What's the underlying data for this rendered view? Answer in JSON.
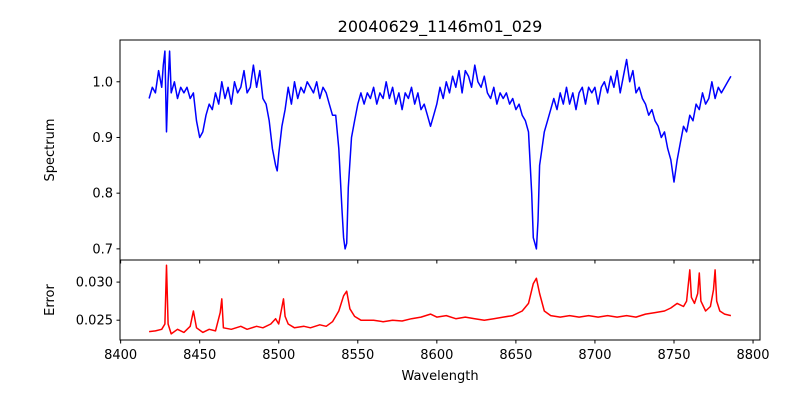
{
  "chart_data": [
    {
      "type": "line",
      "title": "20040629_1146m01_029",
      "xlabel": "",
      "ylabel": "Spectrum",
      "xlim": [
        8399.6,
        8804.4
      ],
      "ylim": [
        0.68,
        1.075
      ],
      "yticks": [
        "0.7",
        "0.8",
        "0.9",
        "1.0"
      ],
      "ytick_values": [
        0.7,
        0.8,
        0.9,
        1.0
      ],
      "color": "#0000ff",
      "x": [
        8418,
        8420,
        8422,
        8424,
        8426,
        8427,
        8428,
        8429,
        8430,
        8431,
        8432,
        8434,
        8436,
        8438,
        8440,
        8442,
        8444,
        8446,
        8448,
        8450,
        8452,
        8454,
        8456,
        8458,
        8460,
        8462,
        8464,
        8466,
        8468,
        8470,
        8472,
        8474,
        8476,
        8478,
        8480,
        8482,
        8484,
        8486,
        8488,
        8490,
        8492,
        8494,
        8496,
        8498,
        8499,
        8500,
        8502,
        8504,
        8506,
        8508,
        8510,
        8512,
        8514,
        8516,
        8518,
        8520,
        8522,
        8524,
        8526,
        8528,
        8530,
        8532,
        8534,
        8536,
        8538,
        8540,
        8541,
        8542,
        8543,
        8544,
        8546,
        8548,
        8550,
        8552,
        8554,
        8556,
        8558,
        8560,
        8562,
        8564,
        8566,
        8568,
        8570,
        8572,
        8574,
        8576,
        8578,
        8580,
        8582,
        8584,
        8586,
        8588,
        8590,
        8592,
        8594,
        8596,
        8598,
        8600,
        8602,
        8604,
        8606,
        8608,
        8610,
        8612,
        8614,
        8616,
        8618,
        8620,
        8622,
        8624,
        8626,
        8628,
        8630,
        8632,
        8634,
        8636,
        8638,
        8640,
        8642,
        8644,
        8646,
        8648,
        8650,
        8652,
        8654,
        8656,
        8658,
        8660,
        8661,
        8662,
        8663,
        8664,
        8665,
        8666,
        8668,
        8670,
        8672,
        8674,
        8676,
        8678,
        8680,
        8682,
        8684,
        8686,
        8688,
        8690,
        8692,
        8694,
        8696,
        8698,
        8700,
        8702,
        8704,
        8706,
        8708,
        8710,
        8712,
        8714,
        8716,
        8718,
        8720,
        8722,
        8724,
        8726,
        8728,
        8730,
        8732,
        8734,
        8736,
        8738,
        8740,
        8742,
        8744,
        8746,
        8748,
        8750,
        8752,
        8754,
        8756,
        8758,
        8760,
        8762,
        8764,
        8766,
        8768,
        8770,
        8772,
        8774,
        8776,
        8778,
        8780,
        8782,
        8784,
        8786
      ],
      "y": [
        0.97,
        0.99,
        0.98,
        1.02,
        0.99,
        1.03,
        1.055,
        0.91,
        1.0,
        1.055,
        0.98,
        1.0,
        0.97,
        0.99,
        0.98,
        0.99,
        0.97,
        0.98,
        0.93,
        0.9,
        0.91,
        0.94,
        0.96,
        0.95,
        0.98,
        0.96,
        1.0,
        0.97,
        0.99,
        0.96,
        1.0,
        0.98,
        0.99,
        1.02,
        0.98,
        0.99,
        1.03,
        0.99,
        1.02,
        0.97,
        0.96,
        0.93,
        0.88,
        0.85,
        0.84,
        0.87,
        0.92,
        0.95,
        0.99,
        0.96,
        1.0,
        0.97,
        0.99,
        0.98,
        1.0,
        0.99,
        0.98,
        1.0,
        0.97,
        0.99,
        0.98,
        0.96,
        0.94,
        0.94,
        0.88,
        0.77,
        0.72,
        0.7,
        0.71,
        0.81,
        0.9,
        0.93,
        0.96,
        0.98,
        0.96,
        0.98,
        0.97,
        0.99,
        0.96,
        0.98,
        0.97,
        1.0,
        0.97,
        0.99,
        0.96,
        0.98,
        0.95,
        0.98,
        0.97,
        0.99,
        0.96,
        0.98,
        0.95,
        0.96,
        0.94,
        0.92,
        0.94,
        0.96,
        0.99,
        0.97,
        1.0,
        0.98,
        1.01,
        0.99,
        1.02,
        0.98,
        1.02,
        1.01,
        0.99,
        1.03,
        1.0,
        0.99,
        1.01,
        0.98,
        0.97,
        0.99,
        0.96,
        0.98,
        0.97,
        0.98,
        0.96,
        0.97,
        0.95,
        0.96,
        0.94,
        0.93,
        0.91,
        0.8,
        0.72,
        0.71,
        0.7,
        0.75,
        0.85,
        0.87,
        0.91,
        0.93,
        0.95,
        0.97,
        0.95,
        0.98,
        0.96,
        0.99,
        0.96,
        0.98,
        0.95,
        0.98,
        0.99,
        0.96,
        0.99,
        0.98,
        0.99,
        0.96,
        0.99,
        1.0,
        0.98,
        1.01,
        0.99,
        1.02,
        0.98,
        1.01,
        1.04,
        1.0,
        1.02,
        0.98,
        0.99,
        0.97,
        0.96,
        0.94,
        0.95,
        0.93,
        0.92,
        0.9,
        0.91,
        0.88,
        0.86,
        0.82,
        0.86,
        0.89,
        0.92,
        0.91,
        0.94,
        0.93,
        0.96,
        0.95,
        0.98,
        0.96,
        0.97,
        1.0,
        0.97,
        0.99,
        0.98,
        0.99,
        1.0,
        1.01
      ]
    },
    {
      "type": "line",
      "title": "",
      "xlabel": "Wavelength",
      "ylabel": "Error",
      "xlim": [
        8399.6,
        8804.4
      ],
      "ylim": [
        0.0224,
        0.0329
      ],
      "xticks": [
        "8400",
        "8450",
        "8500",
        "8550",
        "8600",
        "8650",
        "8700",
        "8750",
        "8800"
      ],
      "xtick_values": [
        8400,
        8450,
        8500,
        8550,
        8600,
        8650,
        8700,
        8750,
        8800
      ],
      "yticks": [
        "0.025",
        "0.030"
      ],
      "ytick_values": [
        0.025,
        0.03
      ],
      "color": "#ff0000",
      "x": [
        8418,
        8422,
        8426,
        8428,
        8429,
        8430,
        8432,
        8436,
        8440,
        8444,
        8446,
        8448,
        8452,
        8456,
        8460,
        8463,
        8464,
        8465,
        8470,
        8476,
        8480,
        8486,
        8490,
        8495,
        8498,
        8500,
        8503,
        8504,
        8506,
        8510,
        8516,
        8520,
        8526,
        8530,
        8534,
        8538,
        8541,
        8543,
        8545,
        8548,
        8552,
        8560,
        8566,
        8572,
        8578,
        8584,
        8590,
        8596,
        8600,
        8606,
        8612,
        8618,
        8624,
        8630,
        8636,
        8642,
        8648,
        8654,
        8658,
        8661,
        8663,
        8665,
        8668,
        8672,
        8678,
        8684,
        8690,
        8696,
        8702,
        8708,
        8714,
        8720,
        8726,
        8732,
        8738,
        8744,
        8748,
        8752,
        8756,
        8758,
        8760,
        8761,
        8763,
        8765,
        8766,
        8767,
        8770,
        8773,
        8775,
        8776,
        8777,
        8779,
        8782,
        8786
      ],
      "y": [
        0.0235,
        0.0236,
        0.0238,
        0.0245,
        0.0322,
        0.0245,
        0.0232,
        0.0238,
        0.0234,
        0.0242,
        0.0262,
        0.024,
        0.0234,
        0.0238,
        0.0236,
        0.026,
        0.0278,
        0.024,
        0.0238,
        0.0242,
        0.0238,
        0.0242,
        0.024,
        0.0245,
        0.0252,
        0.0245,
        0.0278,
        0.0255,
        0.0245,
        0.024,
        0.0242,
        0.024,
        0.0244,
        0.0242,
        0.0248,
        0.0262,
        0.0282,
        0.0288,
        0.0265,
        0.0255,
        0.025,
        0.025,
        0.0248,
        0.025,
        0.0249,
        0.0252,
        0.0254,
        0.0258,
        0.0254,
        0.0256,
        0.0252,
        0.0254,
        0.0252,
        0.025,
        0.0252,
        0.0254,
        0.0256,
        0.0262,
        0.0272,
        0.0298,
        0.0305,
        0.0285,
        0.0262,
        0.0256,
        0.0254,
        0.0256,
        0.0254,
        0.0256,
        0.0254,
        0.0256,
        0.0254,
        0.0256,
        0.0254,
        0.0258,
        0.026,
        0.0262,
        0.0266,
        0.0272,
        0.0268,
        0.0275,
        0.0316,
        0.028,
        0.0272,
        0.0285,
        0.0312,
        0.0275,
        0.0262,
        0.0268,
        0.029,
        0.0316,
        0.0275,
        0.0262,
        0.0258,
        0.0256
      ]
    }
  ]
}
